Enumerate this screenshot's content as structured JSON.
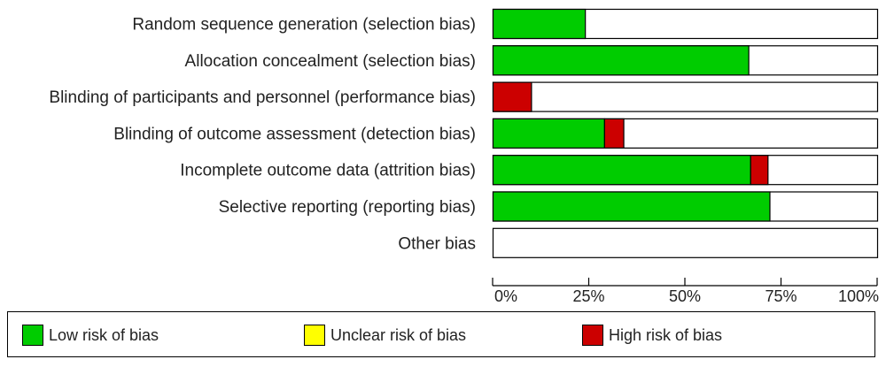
{
  "colors": {
    "low": "#00cc00",
    "unclear": "#ffff00",
    "high": "#cc0000",
    "outline": "#000000"
  },
  "chart_data": {
    "type": "bar",
    "orientation": "horizontal",
    "stacked": true,
    "categories": [
      "Random sequence generation (selection bias)",
      "Allocation concealment (selection bias)",
      "Blinding of participants and personnel (performance bias)",
      "Blinding of outcome assessment (detection bias)",
      "Incomplete outcome data (attrition bias)",
      "Selective reporting (reporting bias)",
      "Other bias"
    ],
    "series": [
      {
        "name": "Low risk of bias",
        "color_key": "low",
        "values": [
          24,
          66.5,
          0,
          29,
          67,
          72,
          0
        ]
      },
      {
        "name": "Unclear risk of bias",
        "color_key": "unclear",
        "values": [
          0,
          0,
          0,
          0,
          0,
          0,
          0
        ]
      },
      {
        "name": "High risk of bias",
        "color_key": "high",
        "values": [
          0,
          0,
          10,
          5,
          4.5,
          0,
          0
        ]
      }
    ],
    "xlim": [
      0,
      100
    ],
    "x_ticks": [
      "0%",
      "25%",
      "50%",
      "75%",
      "100%"
    ],
    "legend_position": "bottom"
  }
}
